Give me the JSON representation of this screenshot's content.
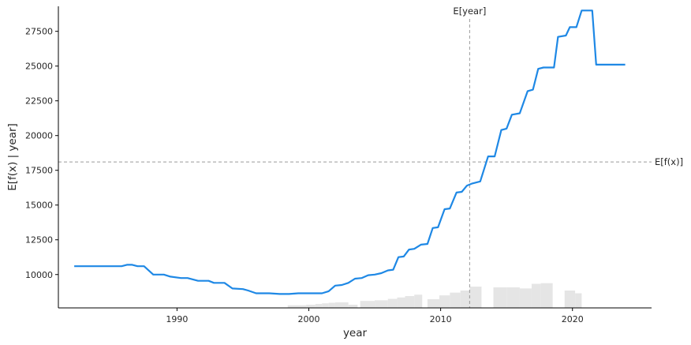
{
  "chart_data": {
    "type": "line",
    "title": "",
    "xlabel": "year",
    "ylabel": "E[f(x) | year]",
    "xlim": [
      1981,
      2026
    ],
    "ylim": [
      7600,
      29300
    ],
    "grid": false,
    "line_color": "#1e88e5",
    "hist_color": "#e5e5e5",
    "ref_color": "#9a9a9a",
    "x_ticks": [
      1990,
      2000,
      2010,
      2020
    ],
    "y_ticks": [
      10000,
      12500,
      15000,
      17500,
      20000,
      22500,
      25000,
      27500
    ],
    "x_tick_labels": [
      "1990",
      "2000",
      "2010",
      "2020"
    ],
    "y_tick_labels": [
      "10000",
      "12500",
      "15000",
      "17500",
      "20000",
      "22500",
      "25000",
      "27500"
    ],
    "expected_value": {
      "label": "E[f(x)]",
      "value": 18100
    },
    "expected_feature": {
      "label": "E[year]",
      "value": 2012.2
    },
    "series": [
      {
        "x": [
          1982.2,
          1985.8,
          1986.2,
          1986.6,
          1987.0,
          1987.5,
          1988.2,
          1989.0,
          1989.5,
          1990.3,
          1990.8,
          1991.6,
          1992.4,
          1992.8,
          1993.6,
          1994.2,
          1995.0,
          1995.4,
          1996.0,
          1997.0,
          1997.8,
          1998.5,
          1999.2,
          2000.0,
          2001.0,
          2001.5,
          2002.0,
          2002.5,
          2003.0,
          2003.5,
          2004.0,
          2004.5,
          2005.0,
          2005.5,
          2006.0,
          2006.4,
          2006.8,
          2007.2,
          2007.6,
          2008.0,
          2008.5,
          2009.0,
          2009.4,
          2009.8,
          2010.3,
          2010.7,
          2011.2,
          2011.6,
          2012.0,
          2012.4,
          2013.0,
          2013.6,
          2014.1,
          2014.6,
          2015.0,
          2015.4,
          2016.0,
          2016.6,
          2017.0,
          2017.4,
          2017.8,
          2018.6,
          2018.9,
          2019.5,
          2019.8,
          2020.3,
          2020.7,
          2021.5,
          2021.8,
          2024.0
        ],
        "y": [
          10600,
          10600,
          10700,
          10700,
          10600,
          10600,
          10000,
          10000,
          9850,
          9750,
          9750,
          9550,
          9550,
          9400,
          9400,
          9000,
          8950,
          8850,
          8650,
          8650,
          8600,
          8600,
          8650,
          8650,
          8650,
          8800,
          9200,
          9250,
          9400,
          9700,
          9750,
          9950,
          10000,
          10100,
          10300,
          10350,
          11250,
          11300,
          11800,
          11850,
          12150,
          12200,
          13350,
          13400,
          14700,
          14750,
          15900,
          15950,
          16400,
          16550,
          16700,
          18500,
          18500,
          20400,
          20500,
          21500,
          21600,
          23200,
          23300,
          24800,
          24900,
          24900,
          27100,
          27200,
          27800,
          27800,
          29000,
          29000,
          25100,
          25100
        ]
      }
    ],
    "histogram": [
      {
        "x0": 1998.4,
        "x1": 1999.8,
        "value": 7790
      },
      {
        "x0": 1999.8,
        "x1": 2000.5,
        "value": 7830
      },
      {
        "x0": 2000.5,
        "x1": 2001.0,
        "value": 7880
      },
      {
        "x0": 2001.0,
        "x1": 2001.5,
        "value": 7930
      },
      {
        "x0": 2001.5,
        "x1": 2002.0,
        "value": 7970
      },
      {
        "x0": 2002.0,
        "x1": 2003.0,
        "value": 8000
      },
      {
        "x0": 2003.0,
        "x1": 2003.7,
        "value": 7830
      },
      {
        "x0": 2003.9,
        "x1": 2005.0,
        "value": 8100
      },
      {
        "x0": 2005.0,
        "x1": 2006.0,
        "value": 8150
      },
      {
        "x0": 2006.0,
        "x1": 2006.7,
        "value": 8250
      },
      {
        "x0": 2006.7,
        "x1": 2007.3,
        "value": 8350
      },
      {
        "x0": 2007.3,
        "x1": 2008.0,
        "value": 8450
      },
      {
        "x0": 2008.0,
        "x1": 2008.6,
        "value": 8550
      },
      {
        "x0": 2009.0,
        "x1": 2009.9,
        "value": 8230
      },
      {
        "x0": 2009.9,
        "x1": 2010.7,
        "value": 8500
      },
      {
        "x0": 2010.7,
        "x1": 2011.5,
        "value": 8700
      },
      {
        "x0": 2011.5,
        "x1": 2012.2,
        "value": 8850
      },
      {
        "x0": 2012.2,
        "x1": 2013.1,
        "value": 9130
      },
      {
        "x0": 2014.0,
        "x1": 2015.0,
        "value": 9080
      },
      {
        "x0": 2015.0,
        "x1": 2016.0,
        "value": 9080
      },
      {
        "x0": 2016.0,
        "x1": 2016.9,
        "value": 9000
      },
      {
        "x0": 2016.9,
        "x1": 2017.6,
        "value": 9330
      },
      {
        "x0": 2017.6,
        "x1": 2018.5,
        "value": 9380
      },
      {
        "x0": 2019.4,
        "x1": 2020.2,
        "value": 8850
      },
      {
        "x0": 2020.2,
        "x1": 2020.7,
        "value": 8650
      }
    ]
  }
}
